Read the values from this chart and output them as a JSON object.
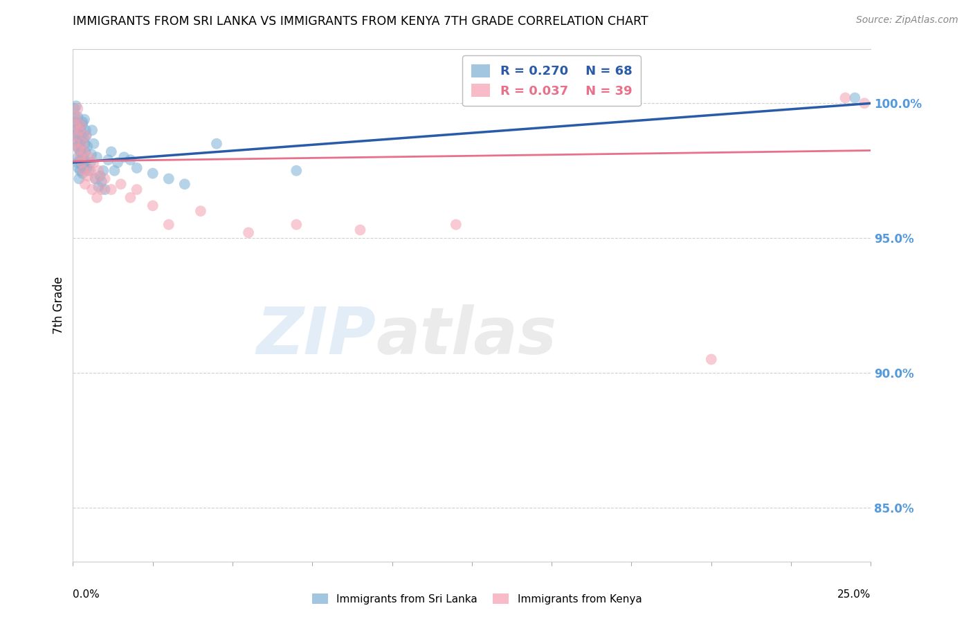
{
  "title": "IMMIGRANTS FROM SRI LANKA VS IMMIGRANTS FROM KENYA 7TH GRADE CORRELATION CHART",
  "source": "Source: ZipAtlas.com",
  "ylabel": "7th Grade",
  "xlim": [
    0.0,
    25.0
  ],
  "ylim": [
    83.0,
    102.0
  ],
  "legend_sri_lanka_R": "0.270",
  "legend_sri_lanka_N": "68",
  "legend_kenya_R": "0.037",
  "legend_kenya_N": "39",
  "sri_lanka_color": "#7BAFD4",
  "kenya_color": "#F4A0B0",
  "sri_lanka_line_color": "#2A5BA8",
  "kenya_line_color": "#E8708A",
  "grid_color": "#D0D0D0",
  "right_tick_color": "#5599DD",
  "watermark_zip_color": "#C8DCF0",
  "watermark_atlas_color": "#C8C8C8",
  "right_yticks": [
    85.0,
    90.0,
    95.0,
    100.0
  ],
  "sl_line_x0": 0.0,
  "sl_line_y0": 97.8,
  "sl_line_x1": 25.0,
  "sl_line_y1": 100.0,
  "ke_line_x0": 0.0,
  "ke_line_y0": 97.85,
  "ke_line_x1": 25.0,
  "ke_line_y1": 98.25,
  "sl_x": [
    0.05,
    0.07,
    0.08,
    0.09,
    0.1,
    0.1,
    0.11,
    0.12,
    0.13,
    0.14,
    0.15,
    0.15,
    0.16,
    0.17,
    0.18,
    0.19,
    0.2,
    0.2,
    0.21,
    0.22,
    0.23,
    0.24,
    0.25,
    0.25,
    0.26,
    0.27,
    0.28,
    0.29,
    0.3,
    0.3,
    0.31,
    0.32,
    0.33,
    0.34,
    0.35,
    0.36,
    0.37,
    0.38,
    0.39,
    0.4,
    0.42,
    0.44,
    0.45,
    0.5,
    0.55,
    0.58,
    0.6,
    0.65,
    0.7,
    0.75,
    0.8,
    0.85,
    0.9,
    0.95,
    1.0,
    1.1,
    1.2,
    1.3,
    1.4,
    1.6,
    1.8,
    2.0,
    2.5,
    3.0,
    3.5,
    4.5,
    7.0,
    24.5
  ],
  "sl_y": [
    99.8,
    99.5,
    99.3,
    99.0,
    98.8,
    99.9,
    98.6,
    99.2,
    98.4,
    97.8,
    98.9,
    99.5,
    98.0,
    97.6,
    98.3,
    97.2,
    99.1,
    98.7,
    98.5,
    97.5,
    98.2,
    97.9,
    98.6,
    99.0,
    98.3,
    97.7,
    98.8,
    99.2,
    97.4,
    98.1,
    99.3,
    97.9,
    98.0,
    97.6,
    98.7,
    99.4,
    98.5,
    97.8,
    98.2,
    99.0,
    98.8,
    97.6,
    98.4,
    97.5,
    97.8,
    98.1,
    99.0,
    98.5,
    97.2,
    98.0,
    96.9,
    97.3,
    97.1,
    97.5,
    96.8,
    97.9,
    98.2,
    97.5,
    97.8,
    98.0,
    97.9,
    97.6,
    97.4,
    97.2,
    97.0,
    98.5,
    97.5,
    100.2
  ],
  "ke_x": [
    0.05,
    0.08,
    0.1,
    0.12,
    0.15,
    0.18,
    0.2,
    0.22,
    0.25,
    0.28,
    0.3,
    0.32,
    0.35,
    0.38,
    0.4,
    0.45,
    0.5,
    0.55,
    0.6,
    0.65,
    0.7,
    0.75,
    0.8,
    0.9,
    1.0,
    1.2,
    1.5,
    1.8,
    2.0,
    2.5,
    3.0,
    4.0,
    5.5,
    7.0,
    9.0,
    12.0,
    20.0,
    24.2,
    24.8
  ],
  "ke_y": [
    98.5,
    99.2,
    99.5,
    98.8,
    99.8,
    98.3,
    99.0,
    98.0,
    99.2,
    97.8,
    98.5,
    97.5,
    98.2,
    97.0,
    98.8,
    97.3,
    98.0,
    97.5,
    96.8,
    97.8,
    97.2,
    96.5,
    97.5,
    96.8,
    97.2,
    96.8,
    97.0,
    96.5,
    96.8,
    96.2,
    95.5,
    96.0,
    95.2,
    95.5,
    95.3,
    95.5,
    90.5,
    100.2,
    100.0
  ]
}
